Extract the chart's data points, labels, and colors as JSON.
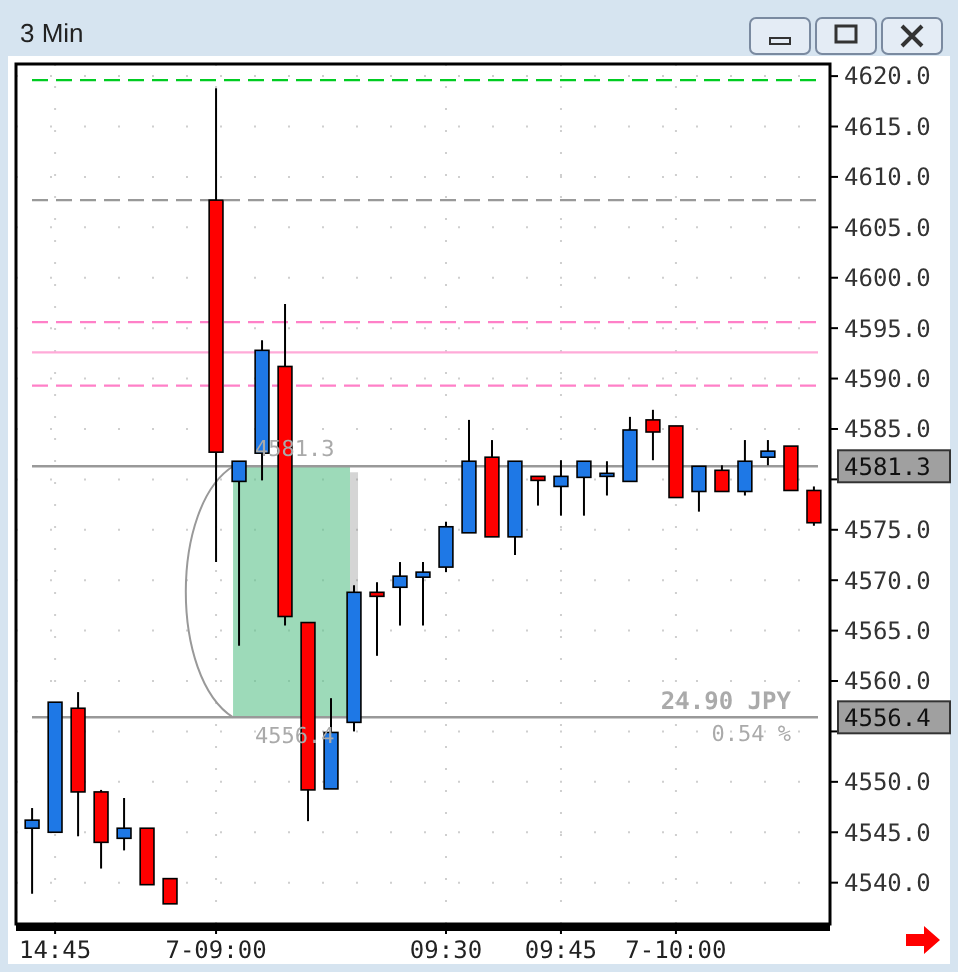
{
  "chart_data": {
    "type": "candlestick",
    "title": "3 Min",
    "categories": [
      null,
      "14:45",
      null,
      null,
      null,
      null,
      null,
      null,
      "7-09:00",
      null,
      null,
      null,
      null,
      null,
      null,
      null,
      null,
      null,
      "09:30",
      null,
      null,
      null,
      null,
      "09:45",
      null,
      null,
      null,
      null,
      "7-10:00",
      null,
      null,
      null,
      null,
      null,
      null
    ],
    "ohlc": [
      [
        4545.4,
        4547.4,
        4538.9,
        4546.2
      ],
      [
        4545.0,
        4557.9,
        4545.0,
        4557.9
      ],
      [
        4557.3,
        4558.9,
        4544.6,
        4549.0
      ],
      [
        4549.0,
        4549.2,
        4541.4,
        4544.0
      ],
      [
        4544.4,
        4548.4,
        4543.2,
        4545.4
      ],
      [
        4545.4,
        4545.4,
        4539.8,
        4539.8
      ],
      [
        4540.4,
        4540.4,
        4537.9,
        4537.9
      ],
      null,
      [
        4607.7,
        4618.8,
        4571.8,
        4582.7
      ],
      [
        4579.8,
        4581.8,
        4563.5,
        4581.8
      ],
      [
        4582.6,
        4593.8,
        4579.9,
        4592.8
      ],
      [
        4591.2,
        4597.4,
        4565.5,
        4566.4
      ],
      [
        4565.8,
        4565.8,
        4546.1,
        4549.2
      ],
      [
        4549.3,
        4558.3,
        4549.3,
        4554.9
      ],
      [
        4555.9,
        4569.5,
        4555.0,
        4568.8
      ],
      [
        4568.8,
        4569.8,
        4562.5,
        4568.4
      ],
      [
        4569.3,
        4571.8,
        4565.5,
        4570.4
      ],
      [
        4570.3,
        4571.8,
        4565.5,
        4570.8
      ],
      [
        4571.3,
        4575.8,
        4570.8,
        4575.3
      ],
      [
        4574.7,
        4585.9,
        4574.7,
        4581.8
      ],
      [
        4582.2,
        4583.9,
        4574.3,
        4574.3
      ],
      [
        4574.3,
        4581.8,
        4572.5,
        4581.8
      ],
      [
        4580.3,
        4580.3,
        4577.4,
        4579.9
      ],
      [
        4579.3,
        4581.9,
        4576.4,
        4580.3
      ],
      [
        4580.2,
        4581.8,
        4576.4,
        4581.8
      ],
      [
        4580.3,
        4581.8,
        4578.4,
        4580.6
      ],
      [
        4579.8,
        4586.2,
        4579.8,
        4584.9
      ],
      [
        4585.9,
        4586.9,
        4581.9,
        4584.7
      ],
      [
        4585.3,
        4585.3,
        4578.2,
        4578.2
      ],
      [
        4578.8,
        4581.3,
        4576.8,
        4581.3
      ],
      [
        4580.9,
        4581.4,
        4578.8,
        4578.8
      ],
      [
        4578.8,
        4583.9,
        4578.4,
        4581.8
      ],
      [
        4582.2,
        4583.9,
        4581.4,
        4582.8
      ],
      [
        4583.3,
        4583.3,
        4578.9,
        4578.9
      ],
      [
        4578.9,
        4579.3,
        4575.4,
        4575.7
      ]
    ],
    "colors": [
      "#1e78e6",
      "#1e78e6",
      "#ff0000",
      "#ff0000",
      "#1e78e6",
      "#ff0000",
      "#ff0000",
      null,
      "#ff0000",
      "#1e78e6",
      "#1e78e6",
      "#ff0000",
      "#ff0000",
      "#1e78e6",
      "#1e78e6",
      "#ff0000",
      "#1e78e6",
      "#1e78e6",
      "#1e78e6",
      "#1e78e6",
      "#ff0000",
      "#1e78e6",
      "#ff0000",
      "#1e78e6",
      "#1e78e6",
      "#1e78e6",
      "#1e78e6",
      "#ff0000",
      "#ff0000",
      "#1e78e6",
      "#ff0000",
      "#1e78e6",
      "#1e78e6",
      "#ff0000",
      "#ff0000"
    ],
    "ylim": [
      4535.9,
      4621.2
    ],
    "yticks": [
      {
        "value": 4540,
        "label": "4540.0"
      },
      {
        "value": 4545,
        "label": "4545.0"
      },
      {
        "value": 4550,
        "label": "4550.0"
      },
      {
        "value": 4555,
        "label": null
      },
      {
        "value": 4560,
        "label": "4560.0"
      },
      {
        "value": 4565,
        "label": "4565.0"
      },
      {
        "value": 4570,
        "label": "4570.0"
      },
      {
        "value": 4575,
        "label": "4575.0"
      },
      {
        "value": 4580,
        "label": null
      },
      {
        "value": 4585,
        "label": "4585.0"
      },
      {
        "value": 4590,
        "label": "4590.0"
      },
      {
        "value": 4595,
        "label": "4595.0"
      },
      {
        "value": 4600,
        "label": "4600.0"
      },
      {
        "value": 4605,
        "label": "4605.0"
      },
      {
        "value": 4610,
        "label": "4610.0"
      },
      {
        "value": 4615,
        "label": "4615.0"
      },
      {
        "value": 4620,
        "label": "4620.0"
      }
    ],
    "grid": true,
    "ref_lines": [
      {
        "axis": "y",
        "value": 4619.6,
        "color": "#00cc22",
        "line_style": "dashed"
      },
      {
        "axis": "y",
        "value": 4607.7,
        "color": "#999999",
        "line_style": "dashed"
      },
      {
        "axis": "y",
        "value": 4595.6,
        "color": "#ff80c8",
        "line_style": "dashed"
      },
      {
        "axis": "y",
        "value": 4592.6,
        "color": "#ffaad8",
        "line_style": "solid"
      },
      {
        "axis": "y",
        "value": 4589.3,
        "color": "#ff80c8",
        "line_style": "dashed"
      },
      {
        "axis": "y",
        "value": 4581.3,
        "label": "4581.3",
        "color": "#999999",
        "line_style": "solid"
      },
      {
        "axis": "y",
        "value": 4556.4,
        "label": "4556.4",
        "color": "#999999",
        "line_style": "solid"
      }
    ],
    "annotations": [
      "24.90 JPY",
      "0.54 %"
    ]
  }
}
